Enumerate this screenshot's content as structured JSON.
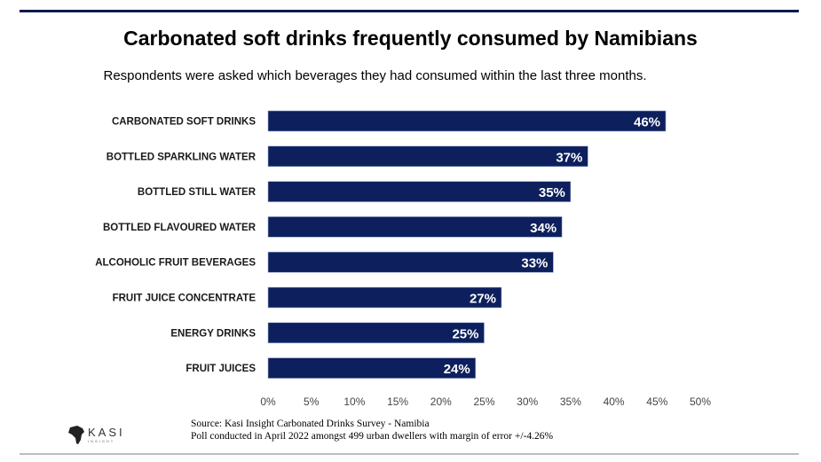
{
  "title": "Carbonated soft drinks frequently consumed by Namibians",
  "subtitle": "Respondents were asked which beverages they had consumed within the last three months.",
  "source_line1": "Source: Kasi Insight Carbonated Drinks Survey - Namibia",
  "source_line2": "Poll conducted in April 2022 amongst 499  urban dwellers with margin of error +/-4.26%",
  "logo_text": "KASI INSIGHT",
  "colors": {
    "bar": "#0d1f5c",
    "top_rule": "#0d1b4c"
  },
  "chart_data": {
    "type": "bar",
    "orientation": "horizontal",
    "categories": [
      "CARBONATED SOFT DRINKS",
      "BOTTLED SPARKLING WATER",
      "BOTTLED STILL WATER",
      "BOTTLED FLAVOURED WATER",
      "ALCOHOLIC FRUIT BEVERAGES",
      "FRUIT JUICE CONCENTRATE",
      "ENERGY DRINKS",
      "FRUIT JUICES"
    ],
    "values": [
      46,
      37,
      35,
      34,
      33,
      27,
      25,
      24
    ],
    "labels": [
      "46%",
      "37%",
      "35%",
      "34%",
      "33%",
      "27%",
      "25%",
      "24%"
    ],
    "xlim": [
      0,
      50
    ],
    "xticks": [
      0,
      5,
      10,
      15,
      20,
      25,
      30,
      35,
      40,
      45,
      50
    ],
    "xtick_labels": [
      "0%",
      "5%",
      "10%",
      "15%",
      "20%",
      "25%",
      "30%",
      "35%",
      "40%",
      "45%",
      "50%"
    ],
    "grid": false,
    "legend": "none"
  }
}
